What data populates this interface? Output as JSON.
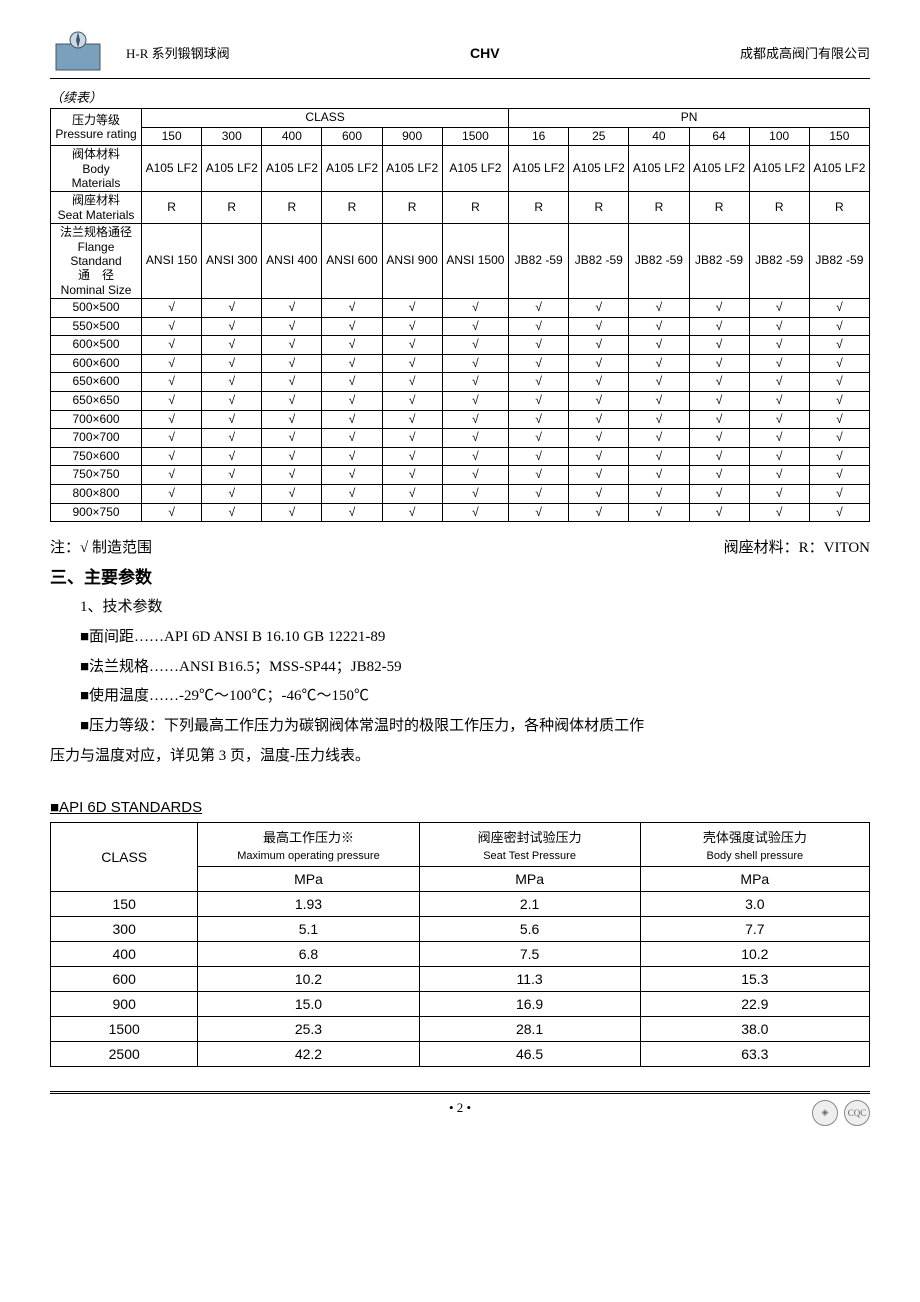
{
  "header": {
    "left": "H-R 系列锻钢球阀",
    "center": "CHV",
    "right": "成都成高阀门有限公司"
  },
  "continued": "（续表）",
  "main_table": {
    "group_headers": [
      {
        "label_zh": "压力等级",
        "label_en": "Pressure rating"
      },
      {
        "label": "CLASS",
        "span": 6
      },
      {
        "label": "PN",
        "span": 6
      }
    ],
    "class_cols": [
      "150",
      "300",
      "400",
      "600",
      "900",
      "1500"
    ],
    "pn_cols": [
      "16",
      "25",
      "40",
      "64",
      "100",
      "150"
    ],
    "row_headers": [
      {
        "zh": "阀体材料",
        "en1": "Body",
        "en2": "Materials"
      },
      {
        "zh": "阀座材料",
        "en": "Seat Materials"
      },
      {
        "zh1": "法兰规格通径",
        "en1": "Flange",
        "en2": "Standand",
        "zh2": "通　径",
        "en3": "Nominal Size"
      }
    ],
    "body_materials": [
      "A105 LF2",
      "A105 LF2",
      "A105 LF2",
      "A105 LF2",
      "A105 LF2",
      "A105 LF2",
      "A105 LF2",
      "A105 LF2",
      "A105 LF2",
      "A105 LF2",
      "A105 LF2",
      "A105 LF2"
    ],
    "seat_materials": [
      "R",
      "R",
      "R",
      "R",
      "R",
      "R",
      "R",
      "R",
      "R",
      "R",
      "R",
      "R"
    ],
    "flange_std_class": [
      "ANSI 150",
      "ANSI 300",
      "ANSI 400",
      "ANSI 600",
      "ANSI 900",
      "ANSI 1500"
    ],
    "flange_std_pn": [
      "JB82 -59",
      "JB82 -59",
      "JB82 -59",
      "JB82 -59",
      "JB82 -59",
      "JB82 -59"
    ],
    "sizes": [
      "500×500",
      "550×500",
      "600×500",
      "600×600",
      "650×600",
      "650×650",
      "700×600",
      "700×700",
      "750×600",
      "750×750",
      "800×800",
      "900×750"
    ],
    "check": "√"
  },
  "notes": {
    "left": "注：√ 制造范围",
    "right": "阀座材料：R：VITON"
  },
  "section_title": "三、主要参数",
  "params": {
    "p1": "1、技术参数",
    "b1": "■面间距……API 6D ANSI B 16.10 GB 12221-89",
    "b2": "■法兰规格……ANSI B16.5；MSS-SP44；JB82-59",
    "b3": "■使用温度……-29℃～100℃；-46℃～150℃",
    "b4a": "■压力等级：下列最高工作压力为碳钢阀体常温时的极限工作压力，各种阀体材质工作",
    "b4b": "压力与温度对应，详见第 3 页，温度-压力线表。"
  },
  "api_title": "■API 6D STANDARDS",
  "api_table": {
    "headers": [
      {
        "zh": "",
        "en": "CLASS"
      },
      {
        "zh": "最高工作压力※",
        "en": "Maximum operating pressure"
      },
      {
        "zh": "阀座密封试验压力",
        "en": "Seat Test Pressure"
      },
      {
        "zh": "壳体强度试验压力",
        "en": "Body shell pressure"
      }
    ],
    "unit_row": [
      "",
      "MPa",
      "MPa",
      "MPa"
    ],
    "rows": [
      [
        "150",
        "1.93",
        "2.1",
        "3.0"
      ],
      [
        "300",
        "5.1",
        "5.6",
        "7.7"
      ],
      [
        "400",
        "6.8",
        "7.5",
        "10.2"
      ],
      [
        "600",
        "10.2",
        "11.3",
        "15.3"
      ],
      [
        "900",
        "15.0",
        "16.9",
        "22.9"
      ],
      [
        "1500",
        "25.3",
        "28.1",
        "38.0"
      ],
      [
        "2500",
        "42.2",
        "46.5",
        "63.3"
      ]
    ]
  },
  "footer": {
    "page": "• 2 •"
  }
}
